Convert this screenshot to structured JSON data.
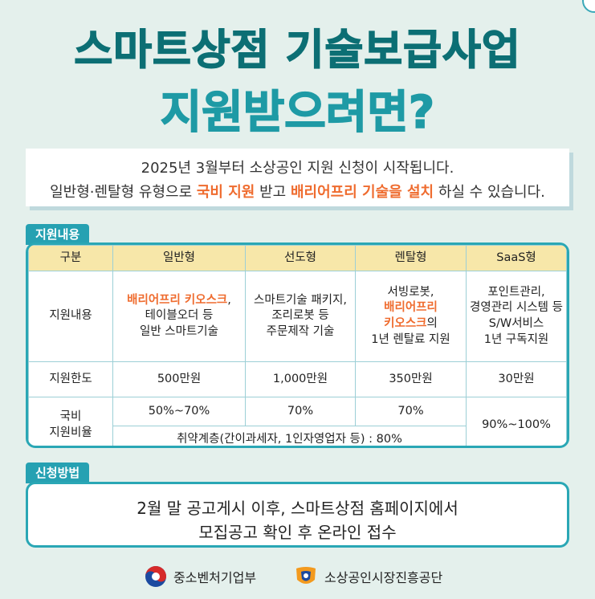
{
  "header": {
    "title_line1": "스마트상점 기술보급사업",
    "title_line2": "지원받으려면?"
  },
  "intro": {
    "line1": "2025년 3월부터 소상공인 지원 신청이 시작됩니다.",
    "line2_a": "일반형·렌탈형 유형으로 ",
    "line2_hl1": "국비 지원",
    "line2_b": " 받고 ",
    "line2_hl2": "배리어프리 기술을 설치",
    "line2_c": " 하실 수 있습니다."
  },
  "support": {
    "tag": "지원내용",
    "headers": [
      "구분",
      "일반형",
      "선도형",
      "렌탈형",
      "SaaS형"
    ],
    "row_content": {
      "label": "지원내용",
      "general_hl": "배리어프리 키오스크",
      "general_rest1": ",",
      "general_rest2": "테이블오더 등",
      "general_rest3": "일반 스마트기술",
      "leading1": "스마트기술 패키지,",
      "leading2": "조리로봇 등",
      "leading3": "주문제작 기술",
      "rental1": "서빙로봇,",
      "rental_hl1": "배리어프리",
      "rental_hl2": "키오스크",
      "rental_suffix": "의",
      "rental3": "1년 렌탈료 지원",
      "saas1": "포인트관리,",
      "saas2": "경영관리 시스템 등",
      "saas3": "S/W서비스",
      "saas4": "1년 구독지원"
    },
    "row_limit": {
      "label": "지원한도",
      "values": [
        "500만원",
        "1,000만원",
        "350만원",
        "30만원"
      ]
    },
    "row_rate": {
      "label1": "국비",
      "label2": "지원비율",
      "general": "50%~70%",
      "leading": "70%",
      "rental": "70%",
      "saas": "90%~100%",
      "vulnerable": "취약계층(간이과세자, 1인자영업자 등) : 80%"
    }
  },
  "apply": {
    "tag": "신청방법",
    "line1": "2월 말 공고게시 이후, 스마트상점 홈페이지에서",
    "line2": "모집공고 확인 후 온라인 접수"
  },
  "footer": {
    "logo1": "중소벤처기업부",
    "logo1_icon": "taegeuk-emblem-icon",
    "logo2": "소상공인시장진흥공단",
    "logo2_icon": "semas-logo-icon"
  },
  "colors": {
    "title_dark": "#0c6f74",
    "title_light": "#1e9aa5",
    "highlight": "#ef6c2f",
    "accent": "#26a1b2",
    "table_header": "#f7e7a9",
    "background": "#e4f0ec"
  }
}
